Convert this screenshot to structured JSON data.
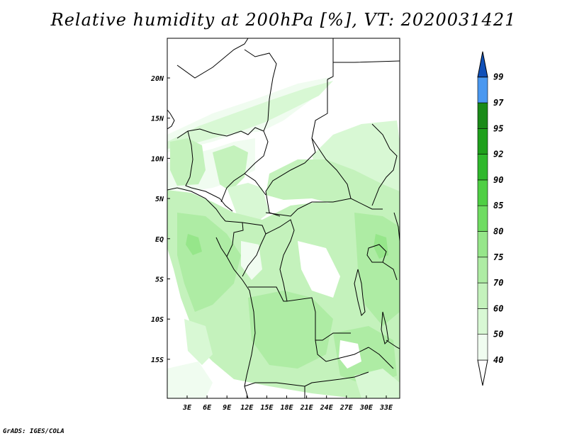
{
  "title": "Relative humidity at 200hPa [%], VT: 2020031421",
  "credit": "GrADS: IGES/COLA",
  "colors": {
    "c40": "#f0fcf0",
    "c50": "#d8f8d4",
    "c60": "#c4f2bc",
    "c70": "#aeeca4",
    "c75": "#96e68a",
    "c80": "#6fdc62",
    "c85": "#4fcf44",
    "c90": "#2fb82c",
    "c92": "#1fa01c",
    "c95": "#1a8a18",
    "c97": "#4a98f0",
    "c99": "#2270d8",
    "top": "#1050b8"
  },
  "map": {
    "lat_ticks": [
      "20N",
      "15N",
      "10N",
      "5N",
      "EQ",
      "5S",
      "10S",
      "15S"
    ],
    "lon_ticks": [
      "3E",
      "6E",
      "9E",
      "12E",
      "15E",
      "18E",
      "21E",
      "24E",
      "27E",
      "30E",
      "33E"
    ],
    "lat_range": [
      -20,
      25
    ],
    "lon_range": [
      0,
      35
    ]
  },
  "colorbar": {
    "levels": [
      "40",
      "50",
      "60",
      "70",
      "75",
      "80",
      "85",
      "90",
      "92",
      "95",
      "97",
      "99"
    ]
  }
}
